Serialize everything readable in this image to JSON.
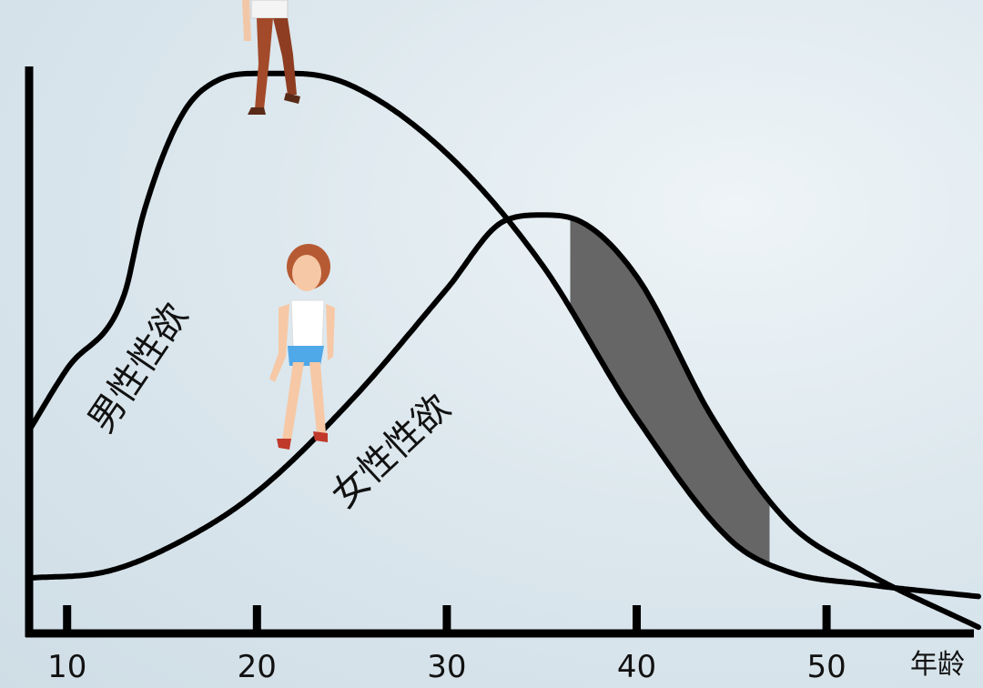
{
  "chart_data": {
    "type": "line",
    "xlabel": "年龄",
    "ylabel": "",
    "xticks": [
      10,
      20,
      30,
      40,
      50
    ],
    "xlim": [
      8,
      58
    ],
    "ylim": [
      0,
      10
    ],
    "grid": false,
    "legend": "none",
    "series": [
      {
        "name": "男性性欲",
        "color": "#000000",
        "x": [
          8,
          10,
          13,
          14,
          16,
          18,
          20,
          22,
          25,
          30,
          35,
          40,
          45,
          48,
          52,
          58
        ],
        "y": [
          3.3,
          4.3,
          5.5,
          6.8,
          8.4,
          9.0,
          9.1,
          9.1,
          8.9,
          7.8,
          6.0,
          3.5,
          1.5,
          1.0,
          0.8,
          0.6
        ]
      },
      {
        "name": "女性性欲",
        "color": "#000000",
        "x": [
          8,
          12,
          16,
          20,
          25,
          30,
          33,
          35,
          37,
          40,
          44,
          48,
          52,
          58
        ],
        "y": [
          0.9,
          1.0,
          1.5,
          2.3,
          3.8,
          5.6,
          6.7,
          6.8,
          6.7,
          5.8,
          3.5,
          1.8,
          1.0,
          0.1
        ]
      }
    ],
    "shaded_region": {
      "x_from": 36.5,
      "x_to": 47,
      "color": "#666666"
    }
  }
}
